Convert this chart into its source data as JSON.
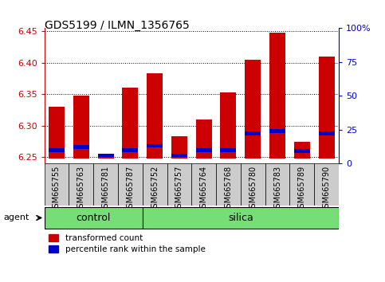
{
  "title": "GDS5199 / ILMN_1356765",
  "samples": [
    "GSM665755",
    "GSM665763",
    "GSM665781",
    "GSM665787",
    "GSM665752",
    "GSM665757",
    "GSM665764",
    "GSM665768",
    "GSM665780",
    "GSM665783",
    "GSM665789",
    "GSM665790"
  ],
  "n_control": 4,
  "n_silica": 8,
  "transformed_count": [
    6.33,
    6.348,
    6.255,
    6.36,
    6.383,
    6.283,
    6.31,
    6.353,
    6.405,
    6.448,
    6.275,
    6.41
  ],
  "percentile_rank": [
    5,
    7,
    1,
    5,
    8,
    1,
    5,
    5,
    17,
    19,
    4,
    17
  ],
  "base": 6.248,
  "ylim": [
    6.24,
    6.455
  ],
  "yticks_left": [
    6.25,
    6.3,
    6.35,
    6.4,
    6.45
  ],
  "yticks_right": [
    0,
    25,
    50,
    75,
    100
  ],
  "yticks_right_labels": [
    "0",
    "25",
    "50",
    "75",
    "100%"
  ],
  "bar_color_red": "#cc0000",
  "bar_color_blue": "#0000cc",
  "left_axis_color": "#cc0000",
  "right_axis_color": "#0000cc",
  "background_plot": "#ffffff",
  "background_xtick": "#cccccc",
  "legend_red_label": "transformed count",
  "legend_blue_label": "percentile rank within the sample",
  "agent_label": "agent",
  "group_bar_color": "#77dd77",
  "control_label": "control",
  "silica_label": "silica"
}
